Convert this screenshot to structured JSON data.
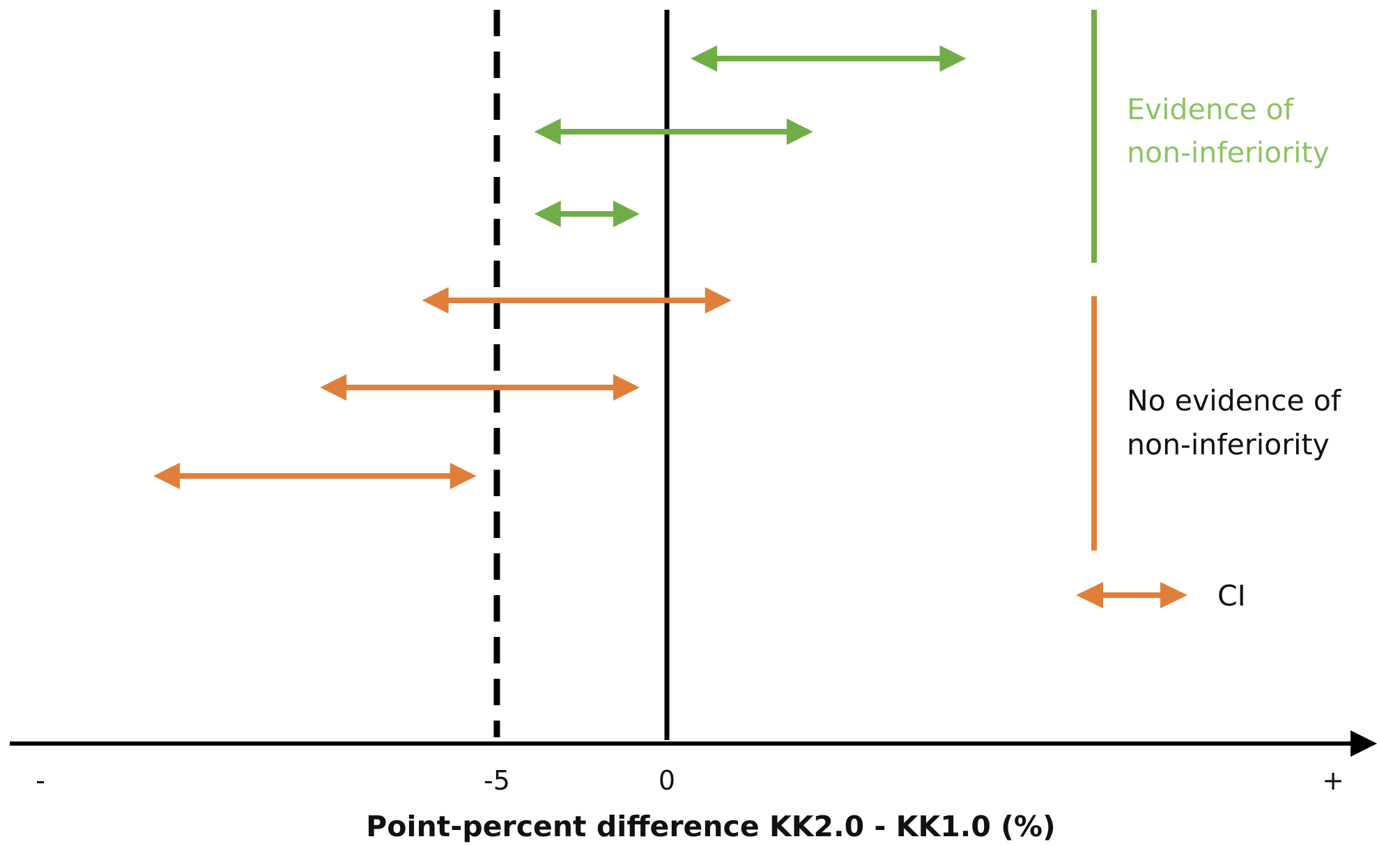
{
  "diagram": {
    "axis": {
      "title": "Point-percent difference KK2.0 - KK1.0 (%)",
      "tick_labels": {
        "minus": "-",
        "margin": "-5",
        "zero": "0",
        "plus": "+"
      }
    },
    "intervals": [
      {
        "group": "non-inferior",
        "lower": 0.7,
        "upper": 8.8
      },
      {
        "group": "non-inferior",
        "lower": -3.9,
        "upper": 4.3
      },
      {
        "group": "non-inferior",
        "lower": -3.9,
        "upper": -0.8
      },
      {
        "group": "inconclusive",
        "lower": -7.2,
        "upper": 1.9
      },
      {
        "group": "inconclusive",
        "lower": -10.2,
        "upper": -0.8
      },
      {
        "group": "inconclusive",
        "lower": -15.1,
        "upper": -5.6
      }
    ],
    "legend": {
      "green_label_line1": "Evidence of",
      "green_label_line2": "non-inferiority",
      "orange_label_line1": "No evidence of",
      "orange_label_line2": "non-inferiority",
      "ci_label": "CI"
    },
    "colors": {
      "green": "#70ad47",
      "orange": "#e07f3a",
      "axis": "#000000",
      "text": "#111111"
    }
  }
}
